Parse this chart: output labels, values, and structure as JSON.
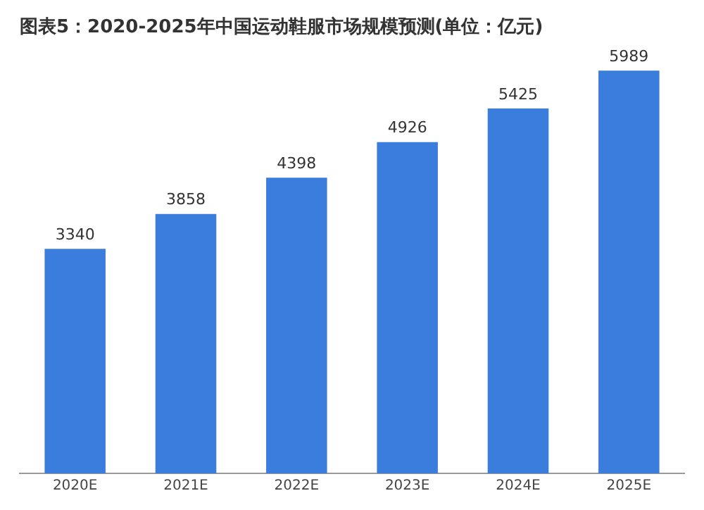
{
  "chart_data": {
    "type": "bar",
    "title": "图表5：2020-2025年中国运动鞋服市场规模预测(单位：亿元)",
    "categories": [
      "2020E",
      "2021E",
      "2022E",
      "2023E",
      "2024E",
      "2025E"
    ],
    "values": [
      3340,
      3858,
      4398,
      4926,
      5425,
      5989
    ],
    "color": "#3b7ddd",
    "data_labels": true,
    "grid": false,
    "legend": false
  }
}
